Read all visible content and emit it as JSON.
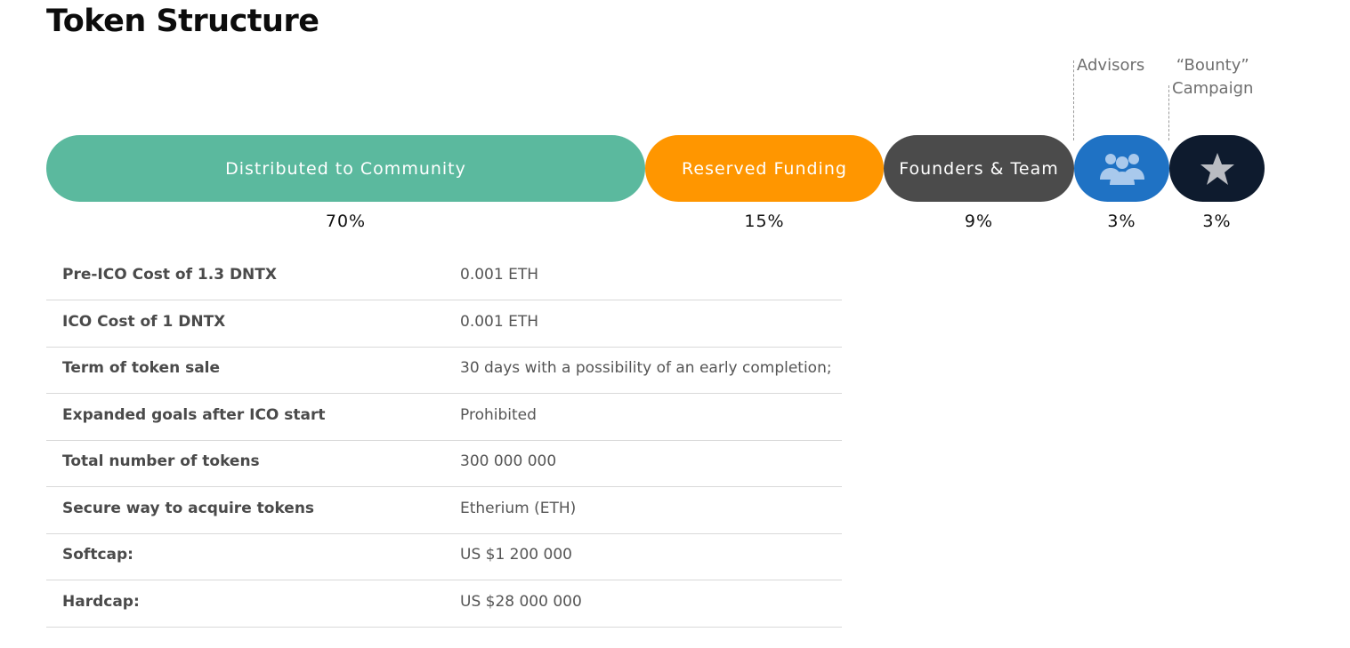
{
  "page": {
    "title": "Token Structure"
  },
  "chart_data": {
    "type": "bar",
    "orientation": "horizontal-stacked",
    "total": 100,
    "segments": [
      {
        "label": "Distributed to Community",
        "value": 70,
        "value_label": "70%",
        "color": "#5bb99e",
        "text_color": "#ffffff"
      },
      {
        "label": "Reserved Funding",
        "value": 15,
        "value_label": "15%",
        "color": "#ff9600",
        "text_color": "#ffffff"
      },
      {
        "label": "Founders & Team",
        "value": 9,
        "value_label": "9%",
        "color": "#4b4b4b",
        "text_color": "#ffffff"
      },
      {
        "label": "Advisors",
        "value": 3,
        "value_label": "3%",
        "color": "#1f72c4",
        "icon": "users-group-icon",
        "icon_color": "#a9c9ec"
      },
      {
        "label": "“Bounty”\nCampaign",
        "value": 3,
        "value_label": "3%",
        "color": "#0e1b2e",
        "icon": "star-icon",
        "icon_color": "#b9bcc2"
      }
    ]
  },
  "specs": {
    "rows": [
      {
        "label": "Pre-ICO Cost of 1.3 DNTX",
        "value": "0.001 ETH"
      },
      {
        "label": "ICO Cost of 1 DNTX",
        "value": "0.001 ETH"
      },
      {
        "label": "Term of token sale",
        "value": "30 days with a possibility of an early completion;"
      },
      {
        "label": "Expanded goals after ICO start",
        "value": "Prohibited"
      },
      {
        "label": "Total number of tokens",
        "value": "300 000 000"
      },
      {
        "label": "Secure way to acquire tokens",
        "value": "Etherium (ETH)"
      },
      {
        "label": "Softcap:",
        "value": "US $1 200 000"
      },
      {
        "label": "Hardcap:",
        "value": "US $28 000 000"
      }
    ]
  }
}
